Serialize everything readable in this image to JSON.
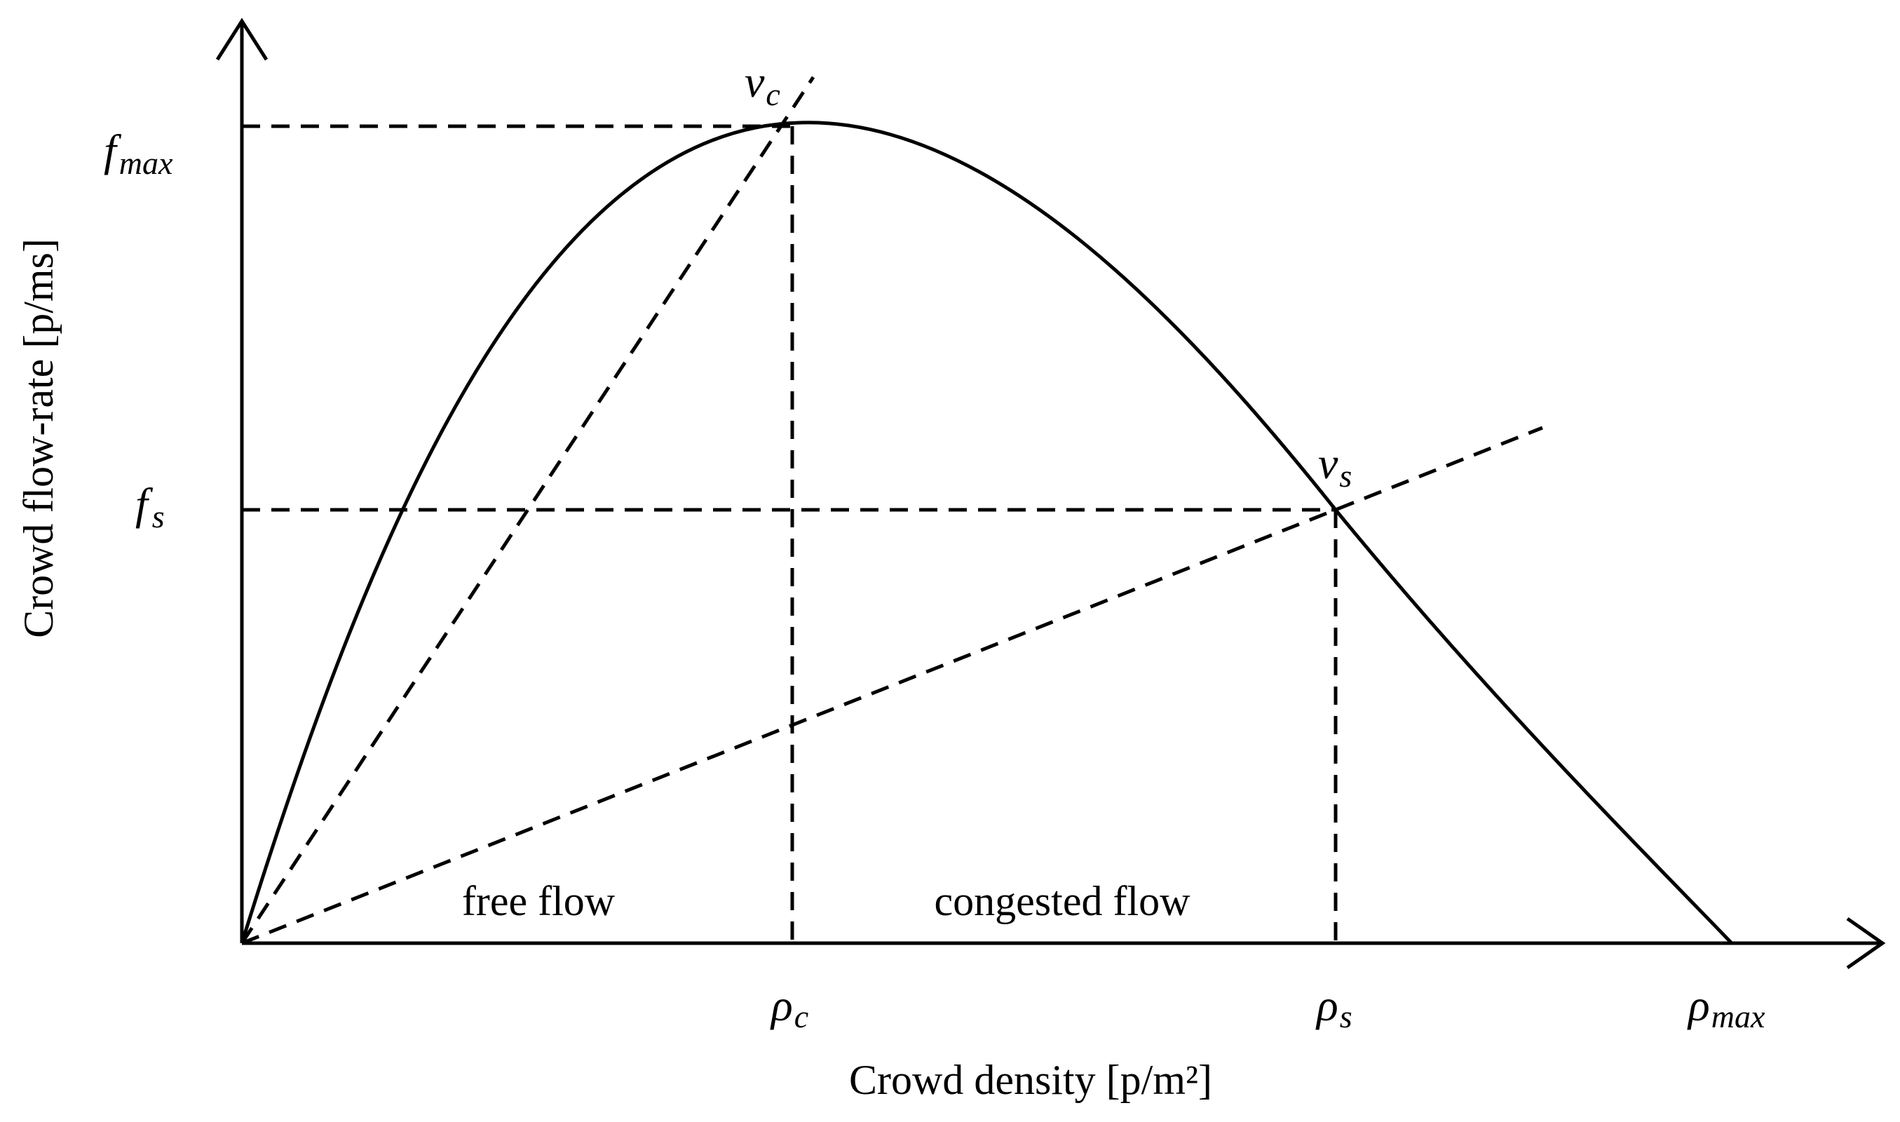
{
  "diagram": {
    "x_axis_title": "Crowd density [p/m²]",
    "y_axis_title": "Crowd flow-rate [p/ms]",
    "regions": {
      "free": "free flow",
      "congested": "congested flow"
    },
    "y_symbols": {
      "f_max": {
        "main": "f",
        "sub": "max"
      },
      "f_s": {
        "main": "f",
        "sub": "s"
      }
    },
    "x_symbols": {
      "rho_c": {
        "main": "ρ",
        "sub": "c"
      },
      "rho_s": {
        "main": "ρ",
        "sub": "s"
      },
      "rho_max": {
        "main": "ρ",
        "sub": "max"
      }
    },
    "speed_symbols": {
      "v_c": {
        "main": "v",
        "sub": "c"
      },
      "v_s": {
        "main": "v",
        "sub": "s"
      }
    }
  }
}
